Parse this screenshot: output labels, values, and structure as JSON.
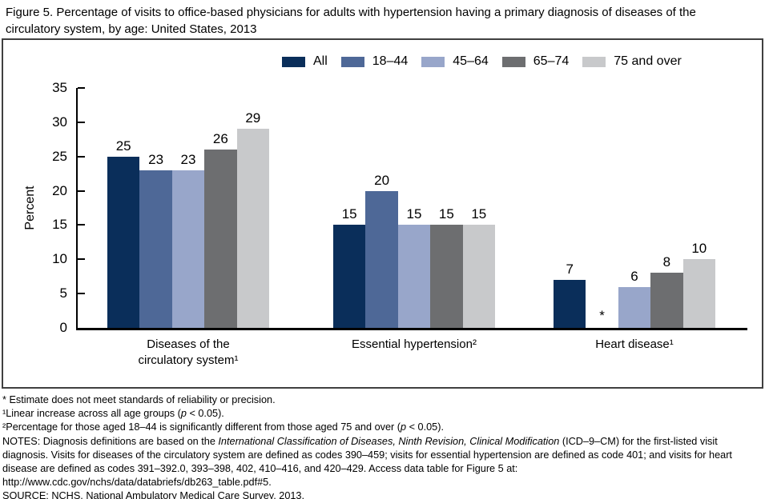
{
  "title": "Figure 5. Percentage of visits to office-based physicians for adults with hypertension having a primary diagnosis of diseases of the circulatory system, by age: United States, 2013",
  "chart_data": {
    "type": "bar",
    "title": "",
    "xlabel": "",
    "ylabel": "Percent",
    "ylim": [
      0,
      35
    ],
    "yticks": [
      0,
      5,
      10,
      15,
      20,
      25,
      30,
      35
    ],
    "grid": false,
    "legend_position": "top-right inside frame",
    "categories": [
      [
        "Diseases of the",
        "circulatory system¹"
      ],
      [
        "Essential hypertension²"
      ],
      [
        "Heart disease¹"
      ]
    ],
    "series": [
      {
        "name": "All",
        "color": "#0a2e5a",
        "values": [
          25,
          15,
          7
        ]
      },
      {
        "name": "18–44",
        "color": "#4e6897",
        "values": [
          23,
          20,
          null
        ]
      },
      {
        "name": "45–64",
        "color": "#98a6ca",
        "values": [
          23,
          15,
          6
        ]
      },
      {
        "name": "65–74",
        "color": "#6d6e70",
        "values": [
          26,
          15,
          8
        ]
      },
      {
        "name": "75 and over",
        "color": "#c8c9cb",
        "values": [
          29,
          15,
          10
        ]
      }
    ],
    "missing_value_marker": "*",
    "bar_value_labels": true
  },
  "footnotes": [
    [
      {
        "t": "* Estimate does not meet standards of reliability or precision."
      }
    ],
    [
      {
        "t": "¹Linear increase across all age groups ("
      },
      {
        "t": "p",
        "i": true
      },
      {
        "t": " < 0.05)."
      }
    ],
    [
      {
        "t": "²Percentage for those aged 18–44 is significantly different from those aged 75 and over ("
      },
      {
        "t": "p",
        "i": true
      },
      {
        "t": " < 0.05)."
      }
    ],
    [
      {
        "t": "NOTES: Diagnosis definitions are based on the "
      },
      {
        "t": "International Classification of Diseases, Ninth Revision, Clinical Modification",
        "i": true
      },
      {
        "t": " (ICD–9–CM) for the first-listed visit diagnosis. Visits for diseases of the circulatory system are defined as codes 390–459; visits for essential hypertension are defined as code 401; and visits for heart disease are defined as codes 391–392.0, 393–398, 402, 410–416, and 420–429. Access data table for Figure 5 at: http://www.cdc.gov/nchs/data/databriefs/db263_table.pdf#5."
      }
    ],
    [
      {
        "t": "SOURCE: NCHS, National Ambulatory Medical Care Survey, 2013."
      }
    ]
  ]
}
